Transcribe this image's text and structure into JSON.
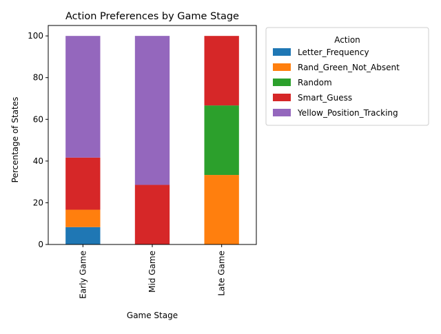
{
  "chart_data": {
    "type": "bar",
    "stacked": true,
    "title": "Action Preferences by Game Stage",
    "xlabel": "Game Stage",
    "ylabel": "Percentage of States",
    "categories": [
      "Early Game",
      "Mid Game",
      "Late Game"
    ],
    "ylim": [
      0,
      105
    ],
    "yticks": [
      0,
      20,
      40,
      60,
      80,
      100
    ],
    "grid": false,
    "legend": {
      "title": "Action",
      "placement": "outside-right-top"
    },
    "series": [
      {
        "name": "Letter_Frequency",
        "color": "#1f77b4",
        "values": [
          8.33,
          0,
          0
        ]
      },
      {
        "name": "Rand_Green_Not_Absent",
        "color": "#ff7f0e",
        "values": [
          8.33,
          0,
          33.33
        ]
      },
      {
        "name": "Random",
        "color": "#2ca02c",
        "values": [
          0,
          0,
          33.33
        ]
      },
      {
        "name": "Smart_Guess",
        "color": "#d62728",
        "values": [
          25.0,
          28.57,
          33.33
        ]
      },
      {
        "name": "Yellow_Position_Tracking",
        "color": "#9467bd",
        "values": [
          58.33,
          71.43,
          0
        ]
      }
    ]
  }
}
